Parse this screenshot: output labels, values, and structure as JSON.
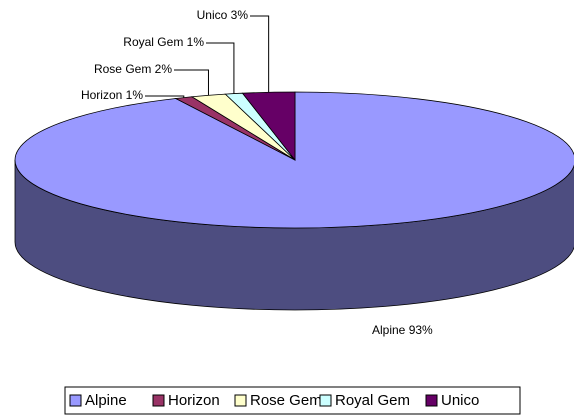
{
  "chart_data": {
    "type": "pie3d",
    "categories": [
      "Alpine",
      "Horizon",
      "Rose Gem",
      "Royal Gem",
      "Unico"
    ],
    "values": [
      93,
      1,
      2,
      1,
      3
    ],
    "value_labels": [
      "Alpine 93%",
      "Horizon 1%",
      "Rose Gem 2%",
      "Royal Gem 1%",
      "Unico 3%"
    ],
    "colors": [
      "#9999ff",
      "#993366",
      "#ffffcc",
      "#ccffff",
      "#660066"
    ],
    "side_color": "#4d4d80",
    "legend": "bottom"
  }
}
